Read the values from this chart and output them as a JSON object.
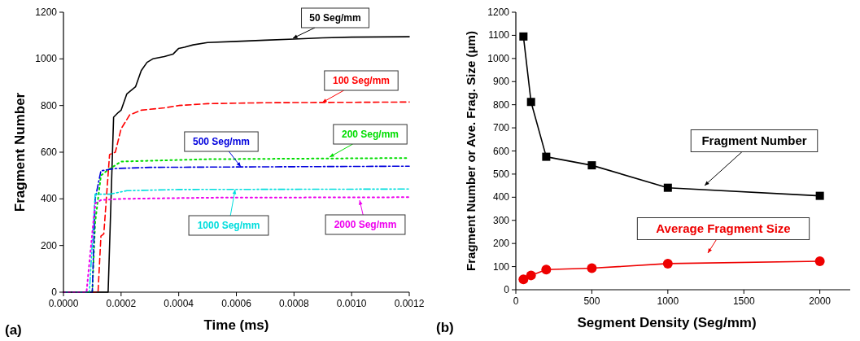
{
  "chart_data": [
    {
      "type": "line",
      "xlabel": "Time (ms)",
      "ylabel": "Fragment Number",
      "annotations": [
        "(a)"
      ],
      "xlim": [
        0,
        0.0012
      ],
      "ylim": [
        0,
        1200
      ],
      "xticks": [
        {
          "value": 0,
          "label": "0.0000"
        },
        {
          "value": 0.0002,
          "label": "0.0002"
        },
        {
          "value": 0.0004,
          "label": "0.0004"
        },
        {
          "value": 0.0006,
          "label": "0.0006"
        },
        {
          "value": 0.0008,
          "label": "0.0008"
        },
        {
          "value": 0.001,
          "label": "0.0010"
        },
        {
          "value": 0.0012,
          "label": "0.0012"
        }
      ],
      "yticks": [
        0,
        200,
        400,
        600,
        800,
        1000,
        1200
      ],
      "grid": false,
      "marker": "none",
      "series": [
        {
          "name": "50 Seg/mm",
          "color": "#000000",
          "line_style": "solid",
          "x": [
            0,
            0.000155,
            0.000174,
            0.00019,
            0.0002,
            0.00022,
            0.00025,
            0.00027,
            0.00029,
            0.00031,
            0.00035,
            0.00038,
            0.0004,
            0.00042,
            0.00045,
            0.0005,
            0.0006,
            0.0007,
            0.0008,
            0.0009,
            0.001,
            0.0012
          ],
          "values": [
            0,
            0,
            750,
            770,
            780,
            850,
            880,
            950,
            985,
            1000,
            1010,
            1020,
            1045,
            1050,
            1060,
            1070,
            1075,
            1080,
            1085,
            1090,
            1093,
            1095
          ]
        },
        {
          "name": "100 Seg/mm",
          "color": "#ff0000",
          "line_style": "dashed",
          "x": [
            0,
            0.00012,
            0.00013,
            0.00014,
            0.00016,
            0.00018,
            0.0002,
            0.00023,
            0.00027,
            0.00035,
            0.0004,
            0.0005,
            0.0007,
            0.0012
          ],
          "values": [
            0,
            0,
            240,
            250,
            590,
            600,
            700,
            760,
            780,
            790,
            800,
            808,
            812,
            815
          ]
        },
        {
          "name": "200 Seg/mm",
          "color": "#00dd00",
          "line_style": "dotted",
          "x": [
            0,
            0.0001,
            0.00011,
            0.00013,
            0.00015,
            0.0002,
            0.0005,
            0.0012
          ],
          "values": [
            0,
            0,
            300,
            500,
            520,
            560,
            570,
            575
          ]
        },
        {
          "name": "500 Seg/mm",
          "color": "#0000dd",
          "line_style": "dashed",
          "x": [
            0,
            0.0001,
            0.00011,
            0.00013,
            0.00018,
            0.0003,
            0.0012
          ],
          "values": [
            0,
            0,
            400,
            520,
            530,
            535,
            540
          ]
        },
        {
          "name": "1000 Seg/mm",
          "color": "#00dddd",
          "line_style": "dashed",
          "x": [
            0,
            9e-05,
            0.00011,
            0.00016,
            0.00022,
            0.0004,
            0.0012
          ],
          "values": [
            0,
            0,
            420,
            420,
            435,
            440,
            442
          ]
        },
        {
          "name": "2000 Seg/mm",
          "color": "#ee00ee",
          "line_style": "dotted",
          "x": [
            0,
            8e-05,
            0.00011,
            0.00013,
            0.0002,
            0.0005,
            0.0012
          ],
          "values": [
            0,
            0,
            380,
            395,
            400,
            405,
            407
          ]
        }
      ]
    },
    {
      "type": "line",
      "xlabel": "Segment Density (Seg/mm)",
      "ylabel": "Fragment Number or Ave. Frag. Size (μm)",
      "annotations": [
        "(b)"
      ],
      "xlim": [
        0,
        2200
      ],
      "ylim": [
        0,
        1200
      ],
      "xticks": [
        0,
        500,
        1000,
        1500,
        2000
      ],
      "yticks": [
        0,
        100,
        200,
        300,
        400,
        500,
        600,
        700,
        800,
        900,
        1000,
        1100,
        1200
      ],
      "grid": false,
      "line_style": "solid",
      "series": [
        {
          "name": "Fragment Number",
          "color": "#000000",
          "marker": "square",
          "x": [
            50,
            100,
            200,
            500,
            1000,
            2000
          ],
          "values": [
            1095,
            812,
            575,
            538,
            441,
            406
          ]
        },
        {
          "name": "Average Fragment Size",
          "color": "#ee0000",
          "marker": "circle",
          "x": [
            50,
            100,
            200,
            500,
            1000,
            2000
          ],
          "values": [
            45,
            62,
            87,
            93,
            113,
            123
          ]
        }
      ]
    }
  ]
}
